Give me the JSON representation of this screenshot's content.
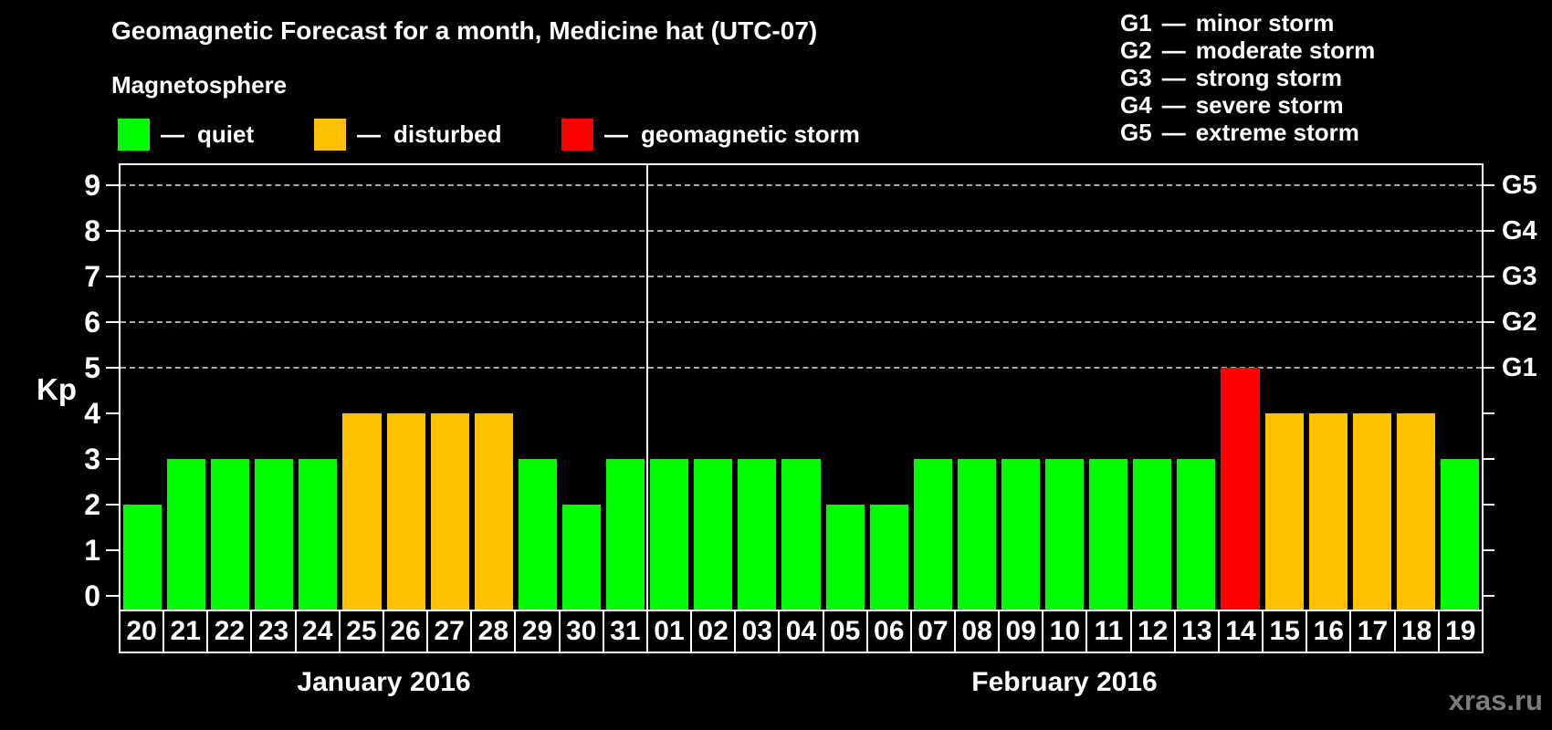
{
  "separator": "—",
  "magnetosphere_legend": {
    "title": "Magnetosphere",
    "items": [
      {
        "status": "quiet",
        "label": "quiet",
        "color": "#00FF00"
      },
      {
        "status": "disturbed",
        "label": "disturbed",
        "color": "#FFC000"
      },
      {
        "status": "storm",
        "label": "geomagnetic storm",
        "color": "#FF0000"
      }
    ]
  },
  "g_scale_legend": [
    {
      "code": "G1",
      "label": "minor storm"
    },
    {
      "code": "G2",
      "label": "moderate storm"
    },
    {
      "code": "G3",
      "label": "strong storm"
    },
    {
      "code": "G4",
      "label": "severe storm"
    },
    {
      "code": "G5",
      "label": "extreme storm"
    }
  ],
  "chart_data": {
    "type": "bar",
    "title": "Geomagnetic Forecast for a month, Medicine hat (UTC-07)",
    "ylabel": "Kp",
    "ylim": [
      0,
      9
    ],
    "yticks": [
      0,
      1,
      2,
      3,
      4,
      5,
      6,
      7,
      8,
      9
    ],
    "gridlines_at": [
      5,
      6,
      7,
      8,
      9
    ],
    "grid_style": "dashed",
    "right_axis_labels": [
      {
        "level": 5,
        "label": "G1"
      },
      {
        "level": 6,
        "label": "G2"
      },
      {
        "level": 7,
        "label": "G3"
      },
      {
        "level": 8,
        "label": "G4"
      },
      {
        "level": 9,
        "label": "G5"
      }
    ],
    "status_colors": {
      "quiet": "#00FF00",
      "disturbed": "#FFC000",
      "storm": "#FF0000"
    },
    "months": [
      {
        "label": "January 2016",
        "days": [
          "20",
          "21",
          "22",
          "23",
          "24",
          "25",
          "26",
          "27",
          "28",
          "29",
          "30",
          "31"
        ],
        "values": [
          2,
          3,
          3,
          3,
          3,
          4,
          4,
          4,
          4,
          3,
          2,
          3
        ],
        "statuses": [
          "quiet",
          "quiet",
          "quiet",
          "quiet",
          "quiet",
          "disturbed",
          "disturbed",
          "disturbed",
          "disturbed",
          "quiet",
          "quiet",
          "quiet"
        ]
      },
      {
        "label": "February 2016",
        "days": [
          "01",
          "02",
          "03",
          "04",
          "05",
          "06",
          "07",
          "08",
          "09",
          "10",
          "11",
          "12",
          "13",
          "14",
          "15",
          "16",
          "17",
          "18",
          "19"
        ],
        "values": [
          3,
          3,
          3,
          3,
          2,
          2,
          3,
          3,
          3,
          3,
          3,
          3,
          3,
          5,
          4,
          4,
          4,
          4,
          3
        ],
        "statuses": [
          "quiet",
          "quiet",
          "quiet",
          "quiet",
          "quiet",
          "quiet",
          "quiet",
          "quiet",
          "quiet",
          "quiet",
          "quiet",
          "quiet",
          "quiet",
          "storm",
          "disturbed",
          "disturbed",
          "disturbed",
          "disturbed",
          "quiet"
        ]
      }
    ]
  },
  "watermark": "xras.ru"
}
